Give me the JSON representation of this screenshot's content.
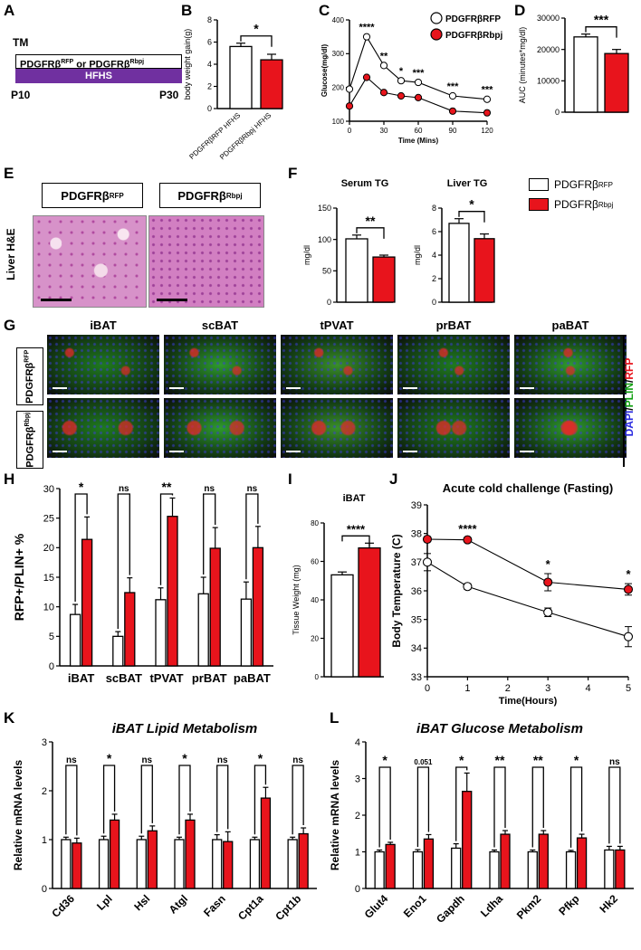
{
  "panels": {
    "A": "A",
    "B": "B",
    "C": "C",
    "D": "D",
    "E": "E",
    "F": "F",
    "G": "G",
    "H": "H",
    "I": "I",
    "J": "J",
    "K": "K",
    "L": "L"
  },
  "colors": {
    "ctrl": "#ffffff",
    "rbpj": "#e8141c",
    "hfhs": "#7030a0",
    "micro_bg": "#0a0a0a"
  },
  "genotypes": {
    "rfp": "PDGFRβ",
    "rfp_sup": "RFP",
    "rbpj": "PDGFRβ",
    "rbpj_sup": "Rbpj"
  },
  "panelA": {
    "tm": "TM",
    "bar_text": "PDGFRβ",
    "bar_sup1": "RFP",
    "bar_or": " or PDGFRβ",
    "bar_sup2": "Rbpj",
    "hfhs": "HFHS",
    "start": "P10",
    "end": "P30"
  },
  "panelE": {
    "side_label": "Liver H&E"
  },
  "panelF": {
    "legend_rfp": "PDGFRβ",
    "legend_rfp_sup": "RFP",
    "legend_rbpj": "PDGFRβ",
    "legend_rbpj_sup": "Rbpj"
  },
  "panelG": {
    "tissues": [
      "iBAT",
      "scBAT",
      "tPVAT",
      "prBAT",
      "paBAT"
    ],
    "stain_dapi": "DAPI",
    "stain_plin": "PLIN",
    "stain_rfp": "RFP",
    "sep": "/"
  },
  "chart_data": [
    {
      "id": "B",
      "type": "bar",
      "categories": [
        "PDGFRβRFP HFHS",
        "PDGFRβRbpj HFHS"
      ],
      "values": [
        5.6,
        4.4
      ],
      "errors": [
        0.3,
        0.5
      ],
      "ylabel": "body weight gain(g)",
      "ylim": [
        0,
        8
      ],
      "yticks": [
        0,
        2,
        4,
        6,
        8
      ],
      "sig": "*"
    },
    {
      "id": "C",
      "type": "line",
      "x": [
        0,
        15,
        30,
        45,
        60,
        90,
        120
      ],
      "series": [
        {
          "name": "PDGFRβRFP",
          "values": [
            195,
            350,
            265,
            220,
            215,
            175,
            165
          ]
        },
        {
          "name": "PDGFRβRbpj",
          "values": [
            145,
            230,
            185,
            175,
            170,
            130,
            125
          ]
        }
      ],
      "sig": [
        "****",
        "**",
        "*",
        "***",
        "***",
        "***"
      ],
      "xlabel": "Time (Mins)",
      "ylabel": "Glucose(mg/dl)",
      "xticks": [
        0,
        30,
        60,
        90,
        120
      ],
      "ylim": [
        100,
        400
      ],
      "yticks": [
        100,
        200,
        300,
        400
      ],
      "legend": [
        "PDGFRβRFP",
        "PDGFRβRbpj"
      ]
    },
    {
      "id": "D",
      "type": "bar",
      "categories": [
        "PDGFRβRFP",
        "PDGFRβRbpj"
      ],
      "values": [
        24000,
        18700
      ],
      "errors": [
        900,
        1300
      ],
      "ylabel": "AUC (minutes*mg/dl)",
      "ylim": [
        0,
        30000
      ],
      "yticks": [
        0,
        10000,
        20000,
        30000
      ],
      "sig": "***"
    },
    {
      "id": "F1",
      "type": "bar",
      "title": "Serum TG",
      "categories": [
        "PDGFRβRFP",
        "PDGFRβRbpj"
      ],
      "values": [
        101,
        72
      ],
      "errors": [
        6,
        3
      ],
      "ylabel": "mg/dl",
      "ylim": [
        0,
        150
      ],
      "yticks": [
        0,
        50,
        100,
        150
      ],
      "sig": "**"
    },
    {
      "id": "F2",
      "type": "bar",
      "title": "Liver TG",
      "categories": [
        "PDGFRβRFP",
        "PDGFRβRbpj"
      ],
      "values": [
        6.7,
        5.4
      ],
      "errors": [
        0.4,
        0.4
      ],
      "ylabel": "mg/dl",
      "ylim": [
        0,
        8
      ],
      "yticks": [
        0,
        2,
        4,
        6,
        8
      ],
      "sig": "*"
    },
    {
      "id": "H",
      "type": "bar",
      "categories": [
        "iBAT",
        "scBAT",
        "tPVAT",
        "prBAT",
        "paBAT"
      ],
      "series": [
        {
          "name": "PDGFRβRFP",
          "values": [
            8.7,
            5.0,
            11.2,
            12.2,
            11.3
          ],
          "errors": [
            1.7,
            0.8,
            2.0,
            2.8,
            2.9
          ]
        },
        {
          "name": "PDGFRβRbpj",
          "values": [
            21.4,
            12.4,
            25.3,
            19.9,
            20.0
          ],
          "errors": [
            3.8,
            2.5,
            3.1,
            3.5,
            3.6
          ]
        }
      ],
      "sig": [
        "*",
        "ns",
        "**",
        "ns",
        "ns"
      ],
      "ylabel": "RFP+/PLIN+ %",
      "ylim": [
        0,
        30
      ],
      "yticks": [
        0,
        5,
        10,
        15,
        20,
        25,
        30
      ]
    },
    {
      "id": "I",
      "type": "bar",
      "title": "iBAT",
      "categories": [
        "PDGFRβRFP",
        "PDGFRβRbpj"
      ],
      "values": [
        53,
        67
      ],
      "errors": [
        1.5,
        2.5
      ],
      "ylabel": "Tissue Weight (mg)",
      "ylim": [
        0,
        80
      ],
      "yticks": [
        0,
        20,
        40,
        60,
        80
      ],
      "sig": "****"
    },
    {
      "id": "J",
      "type": "line",
      "title": "Acute cold challenge (Fasting)",
      "x": [
        0,
        1,
        3,
        5
      ],
      "series": [
        {
          "name": "PDGFRβRFP",
          "values": [
            37.0,
            36.15,
            35.25,
            34.4
          ],
          "errors": [
            0.3,
            0.1,
            0.15,
            0.35
          ]
        },
        {
          "name": "PDGFRβRbpj",
          "values": [
            37.8,
            37.78,
            36.3,
            36.05
          ],
          "errors": [
            0.05,
            0.05,
            0.3,
            0.2
          ]
        }
      ],
      "sig": [
        "",
        "****",
        "*",
        "*"
      ],
      "xlabel": "Time(Hours)",
      "ylabel": "Body Temperature (C)",
      "xlim": [
        0,
        5
      ],
      "xticks": [
        0,
        1,
        2,
        3,
        4,
        5
      ],
      "ylim": [
        33,
        39
      ],
      "yticks": [
        33,
        34,
        35,
        36,
        37,
        38,
        39
      ]
    },
    {
      "id": "K",
      "type": "bar",
      "title": "iBAT Lipid Metabolism",
      "categories": [
        "Cd36",
        "Lpl",
        "Hsl",
        "Atgl",
        "Fasn",
        "Cpt1a",
        "Cpt1b"
      ],
      "series": [
        {
          "name": "PDGFRβRFP",
          "values": [
            1.0,
            1.0,
            1.0,
            1.0,
            1.0,
            1.0,
            1.0
          ],
          "errors": [
            0.05,
            0.07,
            0.07,
            0.05,
            0.1,
            0.05,
            0.05
          ]
        },
        {
          "name": "PDGFRβRbpj",
          "values": [
            0.93,
            1.4,
            1.18,
            1.4,
            0.96,
            1.85,
            1.12
          ],
          "errors": [
            0.1,
            0.12,
            0.1,
            0.12,
            0.2,
            0.22,
            0.12
          ]
        }
      ],
      "sig": [
        "ns",
        "*",
        "ns",
        "*",
        "ns",
        "*",
        "ns"
      ],
      "ylabel": "Relative mRNA levels",
      "ylim": [
        0,
        3
      ],
      "yticks": [
        0,
        1,
        2,
        3
      ]
    },
    {
      "id": "L",
      "type": "bar",
      "title": "iBAT Glucose Metabolism",
      "categories": [
        "Glut4",
        "Eno1",
        "Gapdh",
        "Ldha",
        "Pkm2",
        "Pfkp",
        "Hk2"
      ],
      "series": [
        {
          "name": "PDGFRβRFP",
          "values": [
            1.0,
            1.0,
            1.1,
            1.0,
            1.0,
            1.0,
            1.05
          ],
          "errors": [
            0.05,
            0.06,
            0.12,
            0.05,
            0.05,
            0.04,
            0.1
          ]
        },
        {
          "name": "PDGFRβRbpj",
          "values": [
            1.2,
            1.35,
            2.65,
            1.48,
            1.48,
            1.38,
            1.05
          ],
          "errors": [
            0.06,
            0.12,
            0.5,
            0.1,
            0.1,
            0.1,
            0.1
          ]
        }
      ],
      "sig": [
        "*",
        "0.051",
        "*",
        "**",
        "**",
        "*",
        "ns"
      ],
      "ylabel": "Relative mRNA levels",
      "ylim": [
        0,
        4
      ],
      "yticks": [
        0,
        1,
        2,
        3,
        4
      ]
    }
  ]
}
